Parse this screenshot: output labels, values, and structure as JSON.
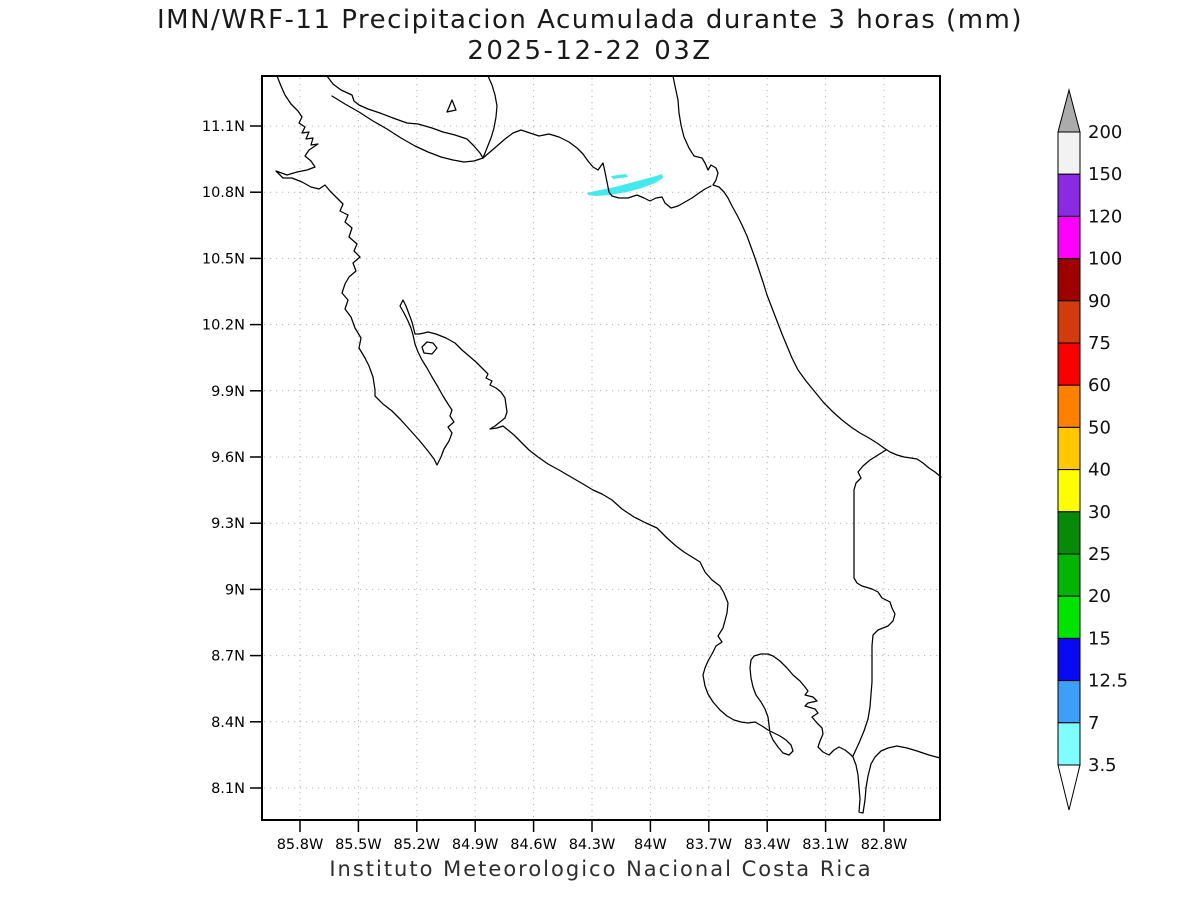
{
  "title": {
    "line1": "IMN/WRF-11 Precipitacion Acumulada durante 3 horas (mm)",
    "line2": "2025-12-22 03Z"
  },
  "footer": "Instituto Meteorologico Nacional Costa Rica",
  "map": {
    "x_tick_labels": [
      "85.8W",
      "85.5W",
      "85.2W",
      "84.9W",
      "84.6W",
      "84.3W",
      "84W",
      "83.7W",
      "83.4W",
      "83.1W",
      "82.8W"
    ],
    "y_tick_labels": [
      "11.1N",
      "10.8N",
      "10.5N",
      "10.2N",
      "9.9N",
      "9.6N",
      "9.3N",
      "9N",
      "8.7N",
      "8.4N",
      "8.1N"
    ],
    "coastline_color": "#000000",
    "grid_color": "#b4b4b4",
    "precip": {
      "color": "#44e9f0",
      "description": "light accumulated precipitation patch (3.5-7 mm) near 10.8N 84.2W"
    }
  },
  "colorbar": {
    "levels": [
      "200",
      "150",
      "120",
      "100",
      "90",
      "75",
      "60",
      "50",
      "40",
      "30",
      "25",
      "20",
      "15",
      "12.5",
      "7",
      "3.5"
    ],
    "colors_top_to_bottom": [
      "#f2f2f2",
      "#8a2be2",
      "#fc00fc",
      "#9e0000",
      "#d23b0e",
      "#f90000",
      "#ff8000",
      "#ffc800",
      "#fefe00",
      "#078a07",
      "#04b404",
      "#00e400",
      "#0a0af2",
      "#3d9ff9",
      "#80fdfd"
    ],
    "over_color": "#ababab",
    "under_color": "#ffffff",
    "units": "mm"
  }
}
